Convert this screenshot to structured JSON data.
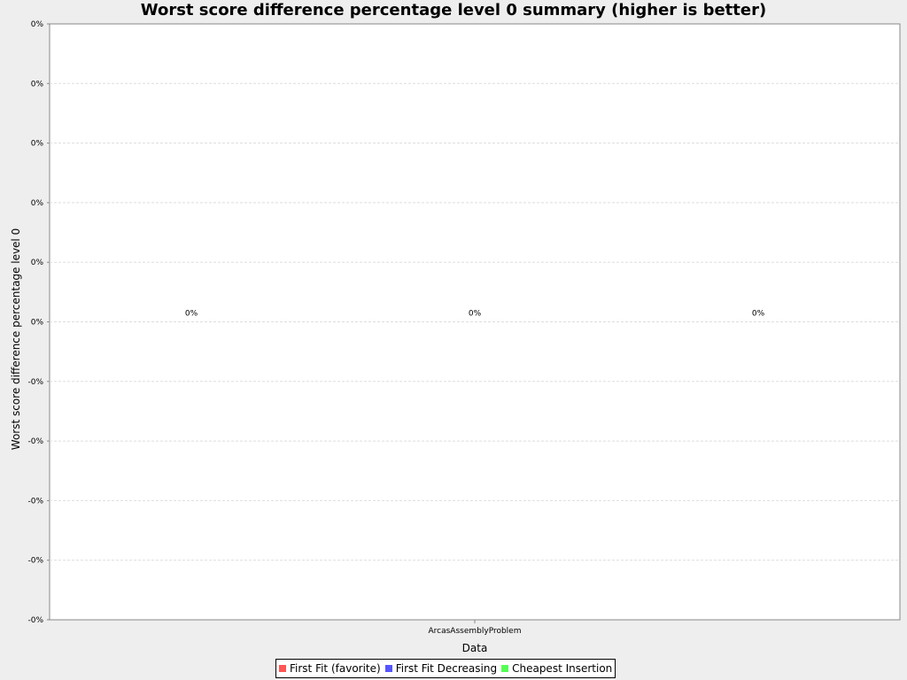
{
  "chart_data": {
    "type": "bar",
    "title": "Worst score difference percentage level 0 summary (higher is better)",
    "xlabel": "Data",
    "ylabel": "Worst score difference percentage level 0",
    "categories": [
      "ArcasAssemblyProblem"
    ],
    "series": [
      {
        "name": "First Fit (favorite)",
        "color": "#ff5555",
        "values": [
          0
        ],
        "value_label": "0%"
      },
      {
        "name": "First Fit Decreasing",
        "color": "#5555ff",
        "values": [
          0
        ],
        "value_label": "0%"
      },
      {
        "name": "Cheapest Insertion",
        "color": "#55ff55",
        "values": [
          0
        ],
        "value_label": "0%"
      }
    ],
    "y_tick_labels": [
      "0%",
      "0%",
      "0%",
      "0%",
      "0%",
      "0%",
      "-0%",
      "-0%",
      "-0%",
      "-0%",
      "-0%"
    ],
    "grid": true,
    "legend_position": "bottom"
  }
}
